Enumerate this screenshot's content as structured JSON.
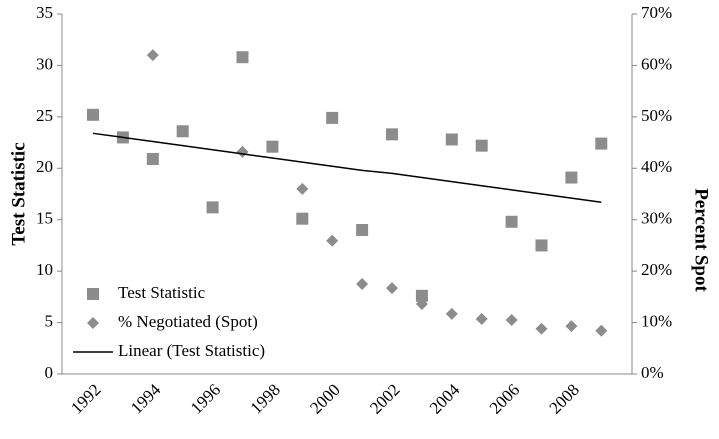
{
  "chart_data": {
    "type": "scatter",
    "categories": [
      "1992",
      null,
      "1994",
      null,
      "1996",
      null,
      "1998",
      null,
      "2000",
      null,
      "2002",
      null,
      "2004",
      null,
      "2006",
      null,
      "2008",
      null
    ],
    "series": [
      {
        "name": "Test Statistic",
        "color": "#8c8c8c",
        "marker": "square",
        "values": [
          25.2,
          23.0,
          20.9,
          23.6,
          16.2,
          30.8,
          22.1,
          15.1,
          24.9,
          14.0,
          23.3,
          7.6,
          22.8,
          22.2,
          14.8,
          12.5,
          19.1,
          22.4
        ]
      },
      {
        "name": "% Negotiated (Spot)",
        "color": "#8c8c8c",
        "marker": "diamond",
        "axis": "y2",
        "values": [
          null,
          null,
          62.0,
          null,
          null,
          43.2,
          null,
          36.0,
          25.9,
          17.5,
          16.7,
          13.6,
          11.7,
          10.7,
          10.5,
          8.8,
          9.3,
          8.4
        ]
      },
      {
        "name": "Linear (Test Statistic)",
        "color": "#000000",
        "marker": "line",
        "values": [
          23.4,
          23.0,
          22.6,
          22.2,
          21.8,
          21.4,
          21.0,
          20.6,
          20.2,
          19.8,
          19.5,
          19.1,
          18.7,
          18.3,
          17.9,
          17.5,
          17.1,
          16.7
        ]
      }
    ],
    "ylabel": "Test Statistic",
    "y2label": "Percent Spot",
    "ylim": [
      0,
      35
    ],
    "yticks": [
      0,
      5,
      10,
      15,
      20,
      25,
      30,
      35
    ],
    "y2lim": [
      0,
      70
    ],
    "y2ticks": [
      {
        "value": 0,
        "label": "0%"
      },
      {
        "value": 10,
        "label": "10%"
      },
      {
        "value": 20,
        "label": "20%"
      },
      {
        "value": 30,
        "label": "30%"
      },
      {
        "value": 40,
        "label": "40%"
      },
      {
        "value": 50,
        "label": "50%"
      },
      {
        "value": 60,
        "label": "60%"
      },
      {
        "value": 70,
        "label": "70%"
      }
    ],
    "legend": "lower-left"
  }
}
